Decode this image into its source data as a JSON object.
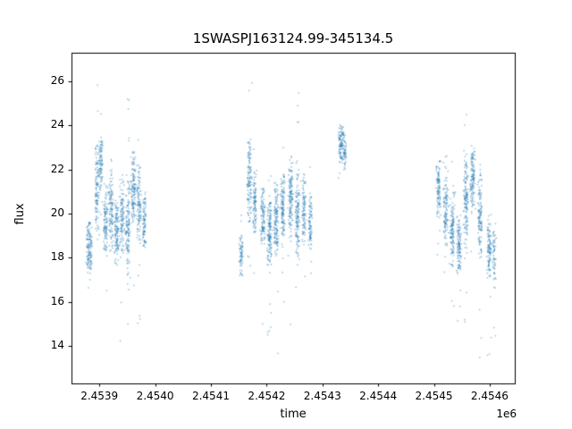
{
  "figure": {
    "title": "1SWASPJ163124.99-345134.5"
  },
  "chart_data": {
    "type": "scatter",
    "title": "1SWASPJ163124.99-345134.5",
    "xlabel": "time",
    "ylabel": "flux",
    "x_offset_label": "1e6",
    "legend": "none",
    "grid": false,
    "point_color": "#1f77b4",
    "point_alpha": 0.45,
    "xlim": [
      2453850,
      2454645
    ],
    "ylim": [
      12.3,
      27.3
    ],
    "xticks": [
      2453900,
      2454000,
      2454100,
      2454200,
      2454300,
      2454400,
      2454500,
      2454600
    ],
    "xtick_labels": [
      "2.4539",
      "2.4540",
      "2.4541",
      "2.4542",
      "2.4543",
      "2.4544",
      "2.4545",
      "2.4546"
    ],
    "yticks": [
      14,
      16,
      18,
      20,
      22,
      24,
      26
    ],
    "ytick_labels": [
      "14",
      "16",
      "18",
      "20",
      "22",
      "24",
      "26"
    ],
    "seed": 42,
    "streaks": [
      {
        "t": 2453878,
        "dt": 8,
        "n": 140,
        "ym": 18.4,
        "ysd": 0.6,
        "lo": 17.2,
        "hi": 19.8,
        "of": 0.02,
        "olo": 16.5,
        "ohi": 20.5
      },
      {
        "t": 2453893,
        "dt": 6,
        "n": 120,
        "ym": 21.2,
        "ysd": 1.0,
        "lo": 18.8,
        "hi": 23.2,
        "of": 0.05,
        "olo": 17.0,
        "ohi": 26.6
      },
      {
        "t": 2453900,
        "dt": 5,
        "n": 90,
        "ym": 22.3,
        "ysd": 0.7,
        "lo": 20.5,
        "hi": 23.5,
        "of": 0.03,
        "olo": 18.0,
        "ohi": 25.0
      },
      {
        "t": 2453908,
        "dt": 6,
        "n": 110,
        "ym": 19.6,
        "ysd": 0.8,
        "lo": 18.0,
        "hi": 21.5,
        "of": 0.03,
        "olo": 16.0,
        "ohi": 23.0
      },
      {
        "t": 2453918,
        "dt": 6,
        "n": 120,
        "ym": 20.2,
        "ysd": 1.0,
        "lo": 18.2,
        "hi": 22.6,
        "of": 0.04,
        "olo": 14.8,
        "ohi": 24.6
      },
      {
        "t": 2453928,
        "dt": 6,
        "n": 120,
        "ym": 19.2,
        "ysd": 0.8,
        "lo": 17.6,
        "hi": 21.0,
        "of": 0.03,
        "olo": 15.5,
        "ohi": 22.5
      },
      {
        "t": 2453938,
        "dt": 5,
        "n": 110,
        "ym": 19.8,
        "ysd": 0.9,
        "lo": 18.0,
        "hi": 21.6,
        "of": 0.05,
        "olo": 14.0,
        "ohi": 23.0
      },
      {
        "t": 2453948,
        "dt": 6,
        "n": 140,
        "ym": 19.4,
        "ysd": 1.1,
        "lo": 17.0,
        "hi": 21.8,
        "of": 0.08,
        "olo": 13.4,
        "ohi": 26.5
      },
      {
        "t": 2453958,
        "dt": 6,
        "n": 130,
        "ym": 21.4,
        "ysd": 0.9,
        "lo": 19.6,
        "hi": 22.8,
        "of": 0.04,
        "olo": 16.0,
        "ohi": 24.0
      },
      {
        "t": 2453968,
        "dt": 6,
        "n": 120,
        "ym": 20.6,
        "ysd": 1.0,
        "lo": 18.6,
        "hi": 22.4,
        "of": 0.05,
        "olo": 14.6,
        "ohi": 23.5
      },
      {
        "t": 2453978,
        "dt": 5,
        "n": 90,
        "ym": 19.7,
        "ysd": 0.7,
        "lo": 18.4,
        "hi": 21.0,
        "of": 0.03,
        "olo": 15.0,
        "ohi": 22.0
      },
      {
        "t": 2454152,
        "dt": 5,
        "n": 70,
        "ym": 18.1,
        "ysd": 0.6,
        "lo": 17.2,
        "hi": 19.2,
        "of": 0.06,
        "olo": 14.0,
        "ohi": 20.0
      },
      {
        "t": 2454166,
        "dt": 6,
        "n": 130,
        "ym": 21.6,
        "ysd": 1.1,
        "lo": 19.6,
        "hi": 23.4,
        "of": 0.05,
        "olo": 17.6,
        "ohi": 26.2
      },
      {
        "t": 2454176,
        "dt": 5,
        "n": 100,
        "ym": 20.4,
        "ysd": 0.8,
        "lo": 19.0,
        "hi": 22.0,
        "of": 0.03,
        "olo": 17.0,
        "ohi": 24.0
      },
      {
        "t": 2454190,
        "dt": 6,
        "n": 110,
        "ym": 19.8,
        "ysd": 0.7,
        "lo": 18.6,
        "hi": 21.2,
        "of": 0.04,
        "olo": 14.5,
        "ohi": 22.5
      },
      {
        "t": 2454202,
        "dt": 6,
        "n": 150,
        "ym": 19.1,
        "ysd": 0.9,
        "lo": 17.6,
        "hi": 20.8,
        "of": 0.07,
        "olo": 13.0,
        "ohi": 22.0
      },
      {
        "t": 2454214,
        "dt": 6,
        "n": 140,
        "ym": 19.6,
        "ysd": 0.9,
        "lo": 18.0,
        "hi": 21.4,
        "of": 0.05,
        "olo": 13.2,
        "ohi": 24.0
      },
      {
        "t": 2454226,
        "dt": 6,
        "n": 130,
        "ym": 20.4,
        "ysd": 0.9,
        "lo": 18.8,
        "hi": 22.0,
        "of": 0.04,
        "olo": 15.0,
        "ohi": 23.0
      },
      {
        "t": 2454240,
        "dt": 6,
        "n": 140,
        "ym": 20.8,
        "ysd": 1.0,
        "lo": 18.6,
        "hi": 22.6,
        "of": 0.05,
        "olo": 14.0,
        "ohi": 24.0
      },
      {
        "t": 2454252,
        "dt": 6,
        "n": 140,
        "ym": 20.2,
        "ysd": 1.2,
        "lo": 17.8,
        "hi": 22.6,
        "of": 0.06,
        "olo": 13.6,
        "ohi": 25.6
      },
      {
        "t": 2454264,
        "dt": 5,
        "n": 100,
        "ym": 20.2,
        "ysd": 0.9,
        "lo": 18.6,
        "hi": 21.8,
        "of": 0.03,
        "olo": 16.0,
        "ohi": 23.0
      },
      {
        "t": 2454276,
        "dt": 5,
        "n": 90,
        "ym": 19.6,
        "ysd": 0.8,
        "lo": 18.2,
        "hi": 21.0,
        "of": 0.04,
        "olo": 14.8,
        "ohi": 22.6
      },
      {
        "t": 2454330,
        "dt": 7,
        "n": 110,
        "ym": 23.2,
        "ysd": 0.5,
        "lo": 22.3,
        "hi": 24.2,
        "of": 0.02,
        "olo": 21.5,
        "ohi": 24.4
      },
      {
        "t": 2454338,
        "dt": 4,
        "n": 50,
        "ym": 22.9,
        "ysd": 0.5,
        "lo": 22.0,
        "hi": 23.8,
        "of": 0.02,
        "olo": 21.0,
        "ohi": 24.0
      },
      {
        "t": 2454505,
        "dt": 6,
        "n": 110,
        "ym": 21.2,
        "ysd": 0.7,
        "lo": 19.8,
        "hi": 22.4,
        "of": 0.03,
        "olo": 18.0,
        "ohi": 23.0
      },
      {
        "t": 2454518,
        "dt": 6,
        "n": 120,
        "ym": 20.2,
        "ysd": 1.0,
        "lo": 18.4,
        "hi": 22.2,
        "of": 0.05,
        "olo": 16.0,
        "ohi": 25.4
      },
      {
        "t": 2454530,
        "dt": 6,
        "n": 130,
        "ym": 19.2,
        "ysd": 0.9,
        "lo": 17.6,
        "hi": 21.0,
        "of": 0.05,
        "olo": 15.8,
        "ohi": 23.0
      },
      {
        "t": 2454542,
        "dt": 6,
        "n": 120,
        "ym": 18.5,
        "ysd": 0.8,
        "lo": 17.0,
        "hi": 20.0,
        "of": 0.06,
        "olo": 13.2,
        "ohi": 21.5
      },
      {
        "t": 2454554,
        "dt": 6,
        "n": 150,
        "ym": 20.6,
        "ysd": 1.2,
        "lo": 18.2,
        "hi": 23.0,
        "of": 0.05,
        "olo": 15.0,
        "ohi": 24.6
      },
      {
        "t": 2454566,
        "dt": 6,
        "n": 130,
        "ym": 21.6,
        "ysd": 0.8,
        "lo": 20.0,
        "hi": 23.2,
        "of": 0.04,
        "olo": 17.8,
        "ohi": 24.0
      },
      {
        "t": 2454580,
        "dt": 6,
        "n": 130,
        "ym": 19.9,
        "ysd": 1.1,
        "lo": 17.6,
        "hi": 22.0,
        "of": 0.06,
        "olo": 13.4,
        "ohi": 23.0
      },
      {
        "t": 2454596,
        "dt": 6,
        "n": 110,
        "ym": 18.3,
        "ysd": 0.8,
        "lo": 16.8,
        "hi": 19.8,
        "of": 0.07,
        "olo": 13.0,
        "ohi": 21.0
      },
      {
        "t": 2454606,
        "dt": 4,
        "n": 60,
        "ym": 17.9,
        "ysd": 0.7,
        "lo": 16.6,
        "hi": 19.2,
        "of": 0.05,
        "olo": 14.0,
        "ohi": 20.0
      }
    ]
  }
}
